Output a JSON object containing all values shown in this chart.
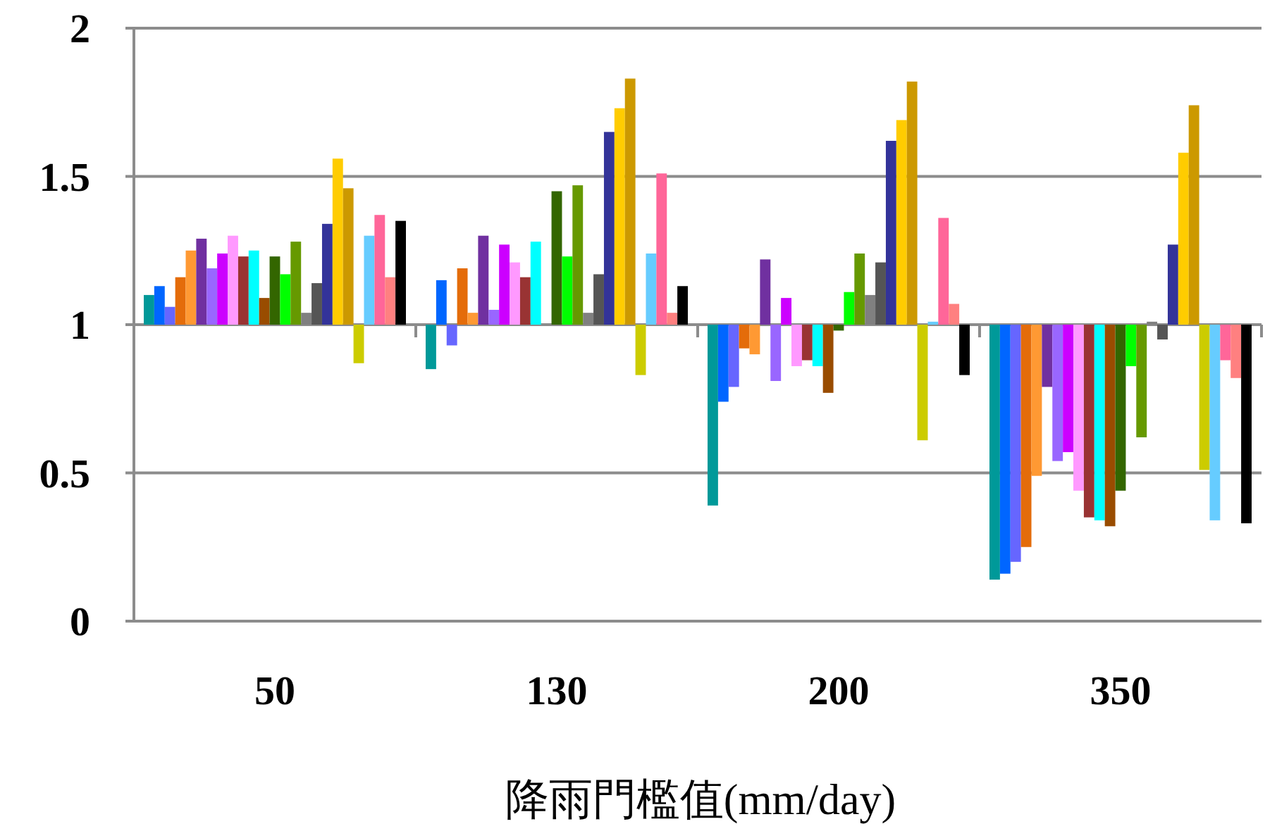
{
  "chart_data": {
    "type": "bar",
    "xlabel": "降雨門檻值(mm/day)",
    "categories": [
      "50",
      "130",
      "200",
      "350"
    ],
    "ylim": [
      0,
      2
    ],
    "yticks": [
      0,
      0.5,
      1,
      1.5,
      2
    ],
    "grid": "y",
    "series": [
      {
        "color": "#009999",
        "base": [
          1,
          1,
          1,
          1
        ],
        "values": [
          0.1,
          -0.15,
          -0.61,
          -0.86
        ]
      },
      {
        "color": "#0066ff",
        "base": [
          1,
          1,
          1,
          1
        ],
        "values": [
          0.13,
          0.15,
          -0.26,
          -0.84
        ]
      },
      {
        "color": "#6666ff",
        "base": [
          1,
          1,
          1,
          1
        ],
        "values": [
          0.06,
          -0.07,
          -0.21,
          -0.8
        ]
      },
      {
        "color": "#e46c0a",
        "base": [
          1,
          1,
          1,
          1
        ],
        "values": [
          0.16,
          0.19,
          -0.08,
          -0.75
        ]
      },
      {
        "color": "#ff9933",
        "base": [
          1,
          1,
          1,
          1
        ],
        "values": [
          0.25,
          0.04,
          -0.1,
          -0.51
        ]
      },
      {
        "color": "#7030a0",
        "base": [
          1,
          1,
          1,
          1
        ],
        "values": [
          0.29,
          0.3,
          0.22,
          -0.21
        ]
      },
      {
        "color": "#9966ff",
        "base": [
          1,
          1,
          1,
          1
        ],
        "values": [
          0.19,
          0.05,
          -0.19,
          -0.46
        ]
      },
      {
        "color": "#cc00ff",
        "base": [
          1,
          1,
          1,
          1
        ],
        "values": [
          0.24,
          0.27,
          0.09,
          -0.43
        ]
      },
      {
        "color": "#ff99ff",
        "base": [
          1,
          1,
          1,
          1
        ],
        "values": [
          0.3,
          0.21,
          -0.14,
          -0.56
        ]
      },
      {
        "color": "#993333",
        "base": [
          1,
          1,
          1,
          1
        ],
        "values": [
          0.23,
          0.16,
          -0.12,
          -0.65
        ]
      },
      {
        "color": "#00ffff",
        "base": [
          1,
          1,
          1,
          1
        ],
        "values": [
          0.25,
          0.28,
          -0.14,
          -0.66
        ]
      },
      {
        "color": "#994c00",
        "base": [
          1,
          null,
          1,
          1
        ],
        "values": [
          0.09,
          null,
          -0.23,
          -0.68
        ]
      },
      {
        "color": "#336600",
        "base": [
          1,
          1,
          1,
          1
        ],
        "values": [
          0.23,
          0.45,
          -0.02,
          -0.56
        ]
      },
      {
        "color": "#00ff00",
        "base": [
          1,
          1,
          1,
          1
        ],
        "values": [
          0.17,
          0.23,
          0.11,
          -0.14
        ]
      },
      {
        "color": "#669900",
        "base": [
          1,
          1,
          1,
          1
        ],
        "values": [
          0.28,
          0.47,
          0.24,
          -0.38
        ]
      },
      {
        "color": "#808080",
        "base": [
          1,
          1,
          1,
          1
        ],
        "values": [
          0.04,
          0.04,
          0.1,
          0.01
        ]
      },
      {
        "color": "#555555",
        "base": [
          1,
          1,
          1,
          1
        ],
        "values": [
          0.14,
          0.17,
          0.21,
          -0.05
        ]
      },
      {
        "color": "#333399",
        "base": [
          1,
          1,
          1,
          1
        ],
        "values": [
          0.34,
          0.65,
          0.62,
          0.27
        ]
      },
      {
        "color": "#ffcc00",
        "base": [
          1,
          1,
          1,
          1
        ],
        "values": [
          0.56,
          0.73,
          0.69,
          0.58
        ]
      },
      {
        "color": "#cc9900",
        "base": [
          1,
          1,
          1,
          1
        ],
        "values": [
          0.46,
          0.83,
          0.82,
          0.74
        ]
      },
      {
        "color": "#cccc00",
        "base": [
          1,
          1,
          1,
          1
        ],
        "values": [
          -0.13,
          -0.17,
          -0.39,
          -0.49
        ]
      },
      {
        "color": "#66ccff",
        "base": [
          1,
          1,
          1,
          1
        ],
        "values": [
          0.3,
          0.24,
          0.01,
          -0.66
        ]
      },
      {
        "color": "#ff6699",
        "base": [
          1,
          1,
          1,
          1
        ],
        "values": [
          0.37,
          0.51,
          0.36,
          -0.12
        ]
      },
      {
        "color": "#ff8080",
        "base": [
          1,
          1,
          1,
          1
        ],
        "values": [
          0.16,
          0.04,
          0.07,
          -0.18
        ]
      },
      {
        "color": "#000000",
        "base": [
          1,
          1,
          1,
          1
        ],
        "values": [
          0.35,
          0.13,
          -0.17,
          -0.67
        ]
      }
    ]
  }
}
